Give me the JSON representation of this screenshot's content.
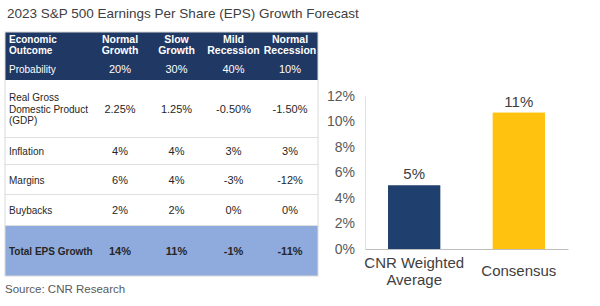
{
  "title": "2023 S&P 500 Earnings Per Share (EPS) Growth Forecast",
  "source": "Source: CNR Research",
  "table": {
    "header": [
      "Economic Outcome",
      "Normal Growth",
      "Slow Growth",
      "Mild Recession",
      "Normal Recession"
    ],
    "rows": [
      [
        "Probability",
        "20%",
        "30%",
        "40%",
        "10%"
      ],
      [
        "Real Gross Domestic Product (GDP)",
        "2.25%",
        "1.25%",
        "-0.50%",
        "-1.50%"
      ],
      [
        "Inflation",
        "4%",
        "4%",
        "3%",
        "3%"
      ],
      [
        "Margins",
        "6%",
        "4%",
        "-3%",
        "-12%"
      ],
      [
        "Buybacks",
        "2%",
        "2%",
        "0%",
        "0%"
      ],
      [
        "Total EPS Growth",
        "14%",
        "11%",
        "-1%",
        "-11%"
      ]
    ]
  },
  "chart_data": {
    "type": "bar",
    "categories": [
      "CNR Weighted Average",
      "Consensus"
    ],
    "values": [
      5,
      10.7
    ],
    "value_labels": [
      "5%",
      "11%"
    ],
    "colors": [
      "#1f3f6e",
      "#ffc20e"
    ],
    "ylim": [
      0,
      12
    ],
    "yticks": [
      {
        "value": 0,
        "label": "0%"
      },
      {
        "value": 2,
        "label": "2%"
      },
      {
        "value": 4,
        "label": "4%"
      },
      {
        "value": 6,
        "label": "6%"
      },
      {
        "value": 8,
        "label": "8%"
      },
      {
        "value": 10,
        "label": "10%"
      },
      {
        "value": 12,
        "label": "12%"
      }
    ],
    "grid": false,
    "data_labels": true
  }
}
